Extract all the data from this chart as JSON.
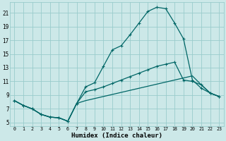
{
  "xlabel": "Humidex (Indice chaleur)",
  "bg_color": "#cce8e8",
  "grid_color": "#99cccc",
  "line_color": "#006666",
  "xlim": [
    -0.5,
    23.5
  ],
  "ylim": [
    4.5,
    22.5
  ],
  "xticks": [
    0,
    1,
    2,
    3,
    4,
    5,
    6,
    7,
    8,
    9,
    10,
    11,
    12,
    13,
    14,
    15,
    16,
    17,
    18,
    19,
    20,
    21,
    22,
    23
  ],
  "yticks": [
    5,
    7,
    9,
    11,
    13,
    15,
    17,
    19,
    21
  ],
  "line1_x": [
    0,
    1,
    2,
    3,
    4,
    5,
    6,
    7,
    8,
    9,
    10,
    11,
    12,
    13,
    14,
    15,
    16,
    17,
    18,
    19,
    20,
    21,
    22,
    23
  ],
  "line1_y": [
    8.2,
    7.5,
    7.0,
    6.2,
    5.8,
    5.7,
    5.2,
    7.8,
    10.2,
    10.8,
    13.2,
    15.6,
    16.2,
    17.8,
    19.5,
    21.2,
    21.8,
    21.6,
    19.5,
    17.2,
    11.2,
    10.0,
    9.3,
    8.8
  ],
  "line2_x": [
    0,
    1,
    2,
    3,
    4,
    5,
    6,
    7,
    8,
    9,
    10,
    11,
    12,
    13,
    14,
    15,
    16,
    17,
    18,
    19,
    20,
    21,
    22,
    23
  ],
  "line2_y": [
    8.2,
    7.5,
    7.0,
    6.2,
    5.8,
    5.7,
    5.2,
    7.8,
    9.5,
    9.8,
    10.2,
    10.7,
    11.2,
    11.7,
    12.2,
    12.7,
    13.2,
    13.5,
    13.8,
    11.2,
    11.0,
    10.5,
    9.3,
    8.8
  ],
  "line3_x": [
    0,
    1,
    2,
    3,
    4,
    5,
    6,
    7,
    8,
    9,
    10,
    11,
    12,
    13,
    14,
    15,
    16,
    17,
    18,
    19,
    20,
    21,
    22,
    23
  ],
  "line3_y": [
    8.2,
    7.5,
    7.0,
    6.2,
    5.8,
    5.7,
    5.2,
    7.8,
    8.2,
    8.5,
    8.8,
    9.1,
    9.4,
    9.7,
    10.0,
    10.3,
    10.6,
    10.9,
    11.2,
    11.5,
    11.8,
    10.5,
    9.3,
    8.8
  ]
}
